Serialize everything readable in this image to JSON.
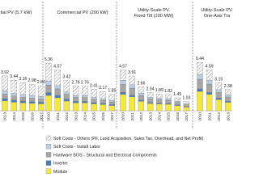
{
  "chart_data": {
    "type": "stacked_bar",
    "ylim": [
      0,
      12
    ],
    "series": [
      {
        "name": "Module",
        "color": "#f5e83a"
      },
      {
        "name": "Inverter",
        "color": "#4a7ebb"
      },
      {
        "name": "Hardware BOS - Structural and Electrical Components",
        "color": "#a6a6a6"
      },
      {
        "name": "Soft Costs - Install Labor",
        "color": "#b9cde5"
      },
      {
        "name": "Soft Costs - Others (PII, Land Acquisition, Sales Tax, Overhead, and Net Profit)",
        "color": "hatch"
      }
    ],
    "groups": [
      {
        "label": [
          "tial PV (5.7 kW)"
        ],
        "categories": [
          "2013",
          "2014",
          "2015",
          "2016",
          "2017"
        ],
        "totals": [
          3.92,
          3.44,
          3.16,
          2.98,
          2.8
        ],
        "totals_labels": [
          "3.92",
          "3.44",
          "3.16",
          "2.98",
          "2.80"
        ],
        "series_values": [
          [
            1.1,
            0.96,
            0.88,
            0.83,
            0.78
          ],
          [
            0.27,
            0.24,
            0.22,
            0.21,
            0.2
          ],
          [
            0.51,
            0.45,
            0.41,
            0.39,
            0.36
          ],
          [
            0.39,
            0.34,
            0.32,
            0.3,
            0.28
          ],
          [
            1.65,
            1.45,
            1.33,
            1.25,
            1.18
          ]
        ]
      },
      {
        "label": [
          "Commercial PV (200 kW)"
        ],
        "categories": [
          "2010",
          "2011",
          "2012",
          "2013",
          "2014",
          "2015",
          "2016",
          "2017"
        ],
        "totals": [
          5.36,
          4.57,
          3.42,
          2.78,
          2.76,
          2.41,
          2.17,
          1.85
        ],
        "series_values": [
          [
            1.72,
            1.46,
            1.09,
            0.89,
            0.88,
            0.77,
            0.69,
            0.59
          ],
          [
            0.32,
            0.27,
            0.21,
            0.17,
            0.17,
            0.14,
            0.13,
            0.11
          ],
          [
            0.86,
            0.73,
            0.55,
            0.44,
            0.44,
            0.39,
            0.35,
            0.3
          ],
          [
            0.43,
            0.37,
            0.27,
            0.22,
            0.22,
            0.19,
            0.17,
            0.15
          ],
          [
            2.03,
            1.74,
            1.3,
            1.06,
            1.05,
            0.92,
            0.83,
            0.7
          ]
        ]
      },
      {
        "label": [
          "Utility-Scale PV,",
          "Fixed Tilt (100 MW)"
        ],
        "categories": [
          "2010",
          "2011",
          "2012",
          "2013",
          "2014",
          "2015",
          "2016",
          "2017"
        ],
        "totals": [
          4.57,
          3.91,
          2.66,
          2.04,
          1.89,
          1.82,
          1.45,
          1.03
        ],
        "series_values": [
          [
            1.83,
            1.56,
            1.06,
            0.82,
            0.76,
            0.73,
            0.58,
            0.41
          ],
          [
            0.23,
            0.2,
            0.13,
            0.1,
            0.09,
            0.09,
            0.07,
            0.05
          ],
          [
            0.91,
            0.78,
            0.53,
            0.41,
            0.38,
            0.36,
            0.29,
            0.21
          ],
          [
            0.46,
            0.39,
            0.27,
            0.2,
            0.19,
            0.18,
            0.15,
            0.1
          ],
          [
            1.14,
            0.98,
            0.67,
            0.51,
            0.47,
            0.46,
            0.36,
            0.26
          ]
        ]
      },
      {
        "label": [
          "Utility-Scale PV,",
          "One-Axis Tra"
        ],
        "categories": [
          "2010",
          "2011",
          "2012",
          "2013"
        ],
        "totals": [
          5.44,
          4.59,
          3.15,
          2.38
        ],
        "series_values": [
          [
            2.18,
            1.84,
            1.26,
            0.95
          ],
          [
            0.27,
            0.23,
            0.16,
            0.12
          ],
          [
            1.09,
            0.92,
            0.63,
            0.48
          ],
          [
            0.54,
            0.46,
            0.32,
            0.24
          ],
          [
            1.36,
            1.14,
            0.78,
            0.59
          ]
        ]
      }
    ]
  }
}
